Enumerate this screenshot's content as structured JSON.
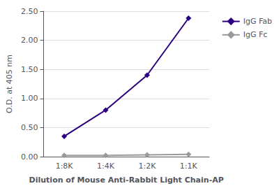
{
  "chart_data": {
    "type": "line",
    "xlabel": "Dilution of Mouse Anti-Rabbit Light Chain-AP",
    "ylabel": "O.D. at 405 nm",
    "categories": [
      "1:8K",
      "1:4K",
      "1:2K",
      "1:1K"
    ],
    "series": [
      {
        "name": "IgG Fab",
        "color": "#2B0080",
        "marker": "diamond",
        "values": [
          0.35,
          0.8,
          1.4,
          2.38
        ]
      },
      {
        "name": "IgG Fc",
        "color": "#999999",
        "marker": "diamond",
        "values": [
          0.02,
          0.02,
          0.03,
          0.04
        ]
      }
    ],
    "ylim": [
      0.0,
      2.5
    ],
    "yticks": [
      {
        "value": 0.0,
        "label": "0.00"
      },
      {
        "value": 0.5,
        "label": "0.50"
      },
      {
        "value": 1.0,
        "label": "1.00"
      },
      {
        "value": 1.5,
        "label": "1.50"
      },
      {
        "value": 2.0,
        "label": "2.00"
      },
      {
        "value": 2.5,
        "label": "2.50"
      }
    ],
    "grid": true,
    "legend": "right"
  }
}
